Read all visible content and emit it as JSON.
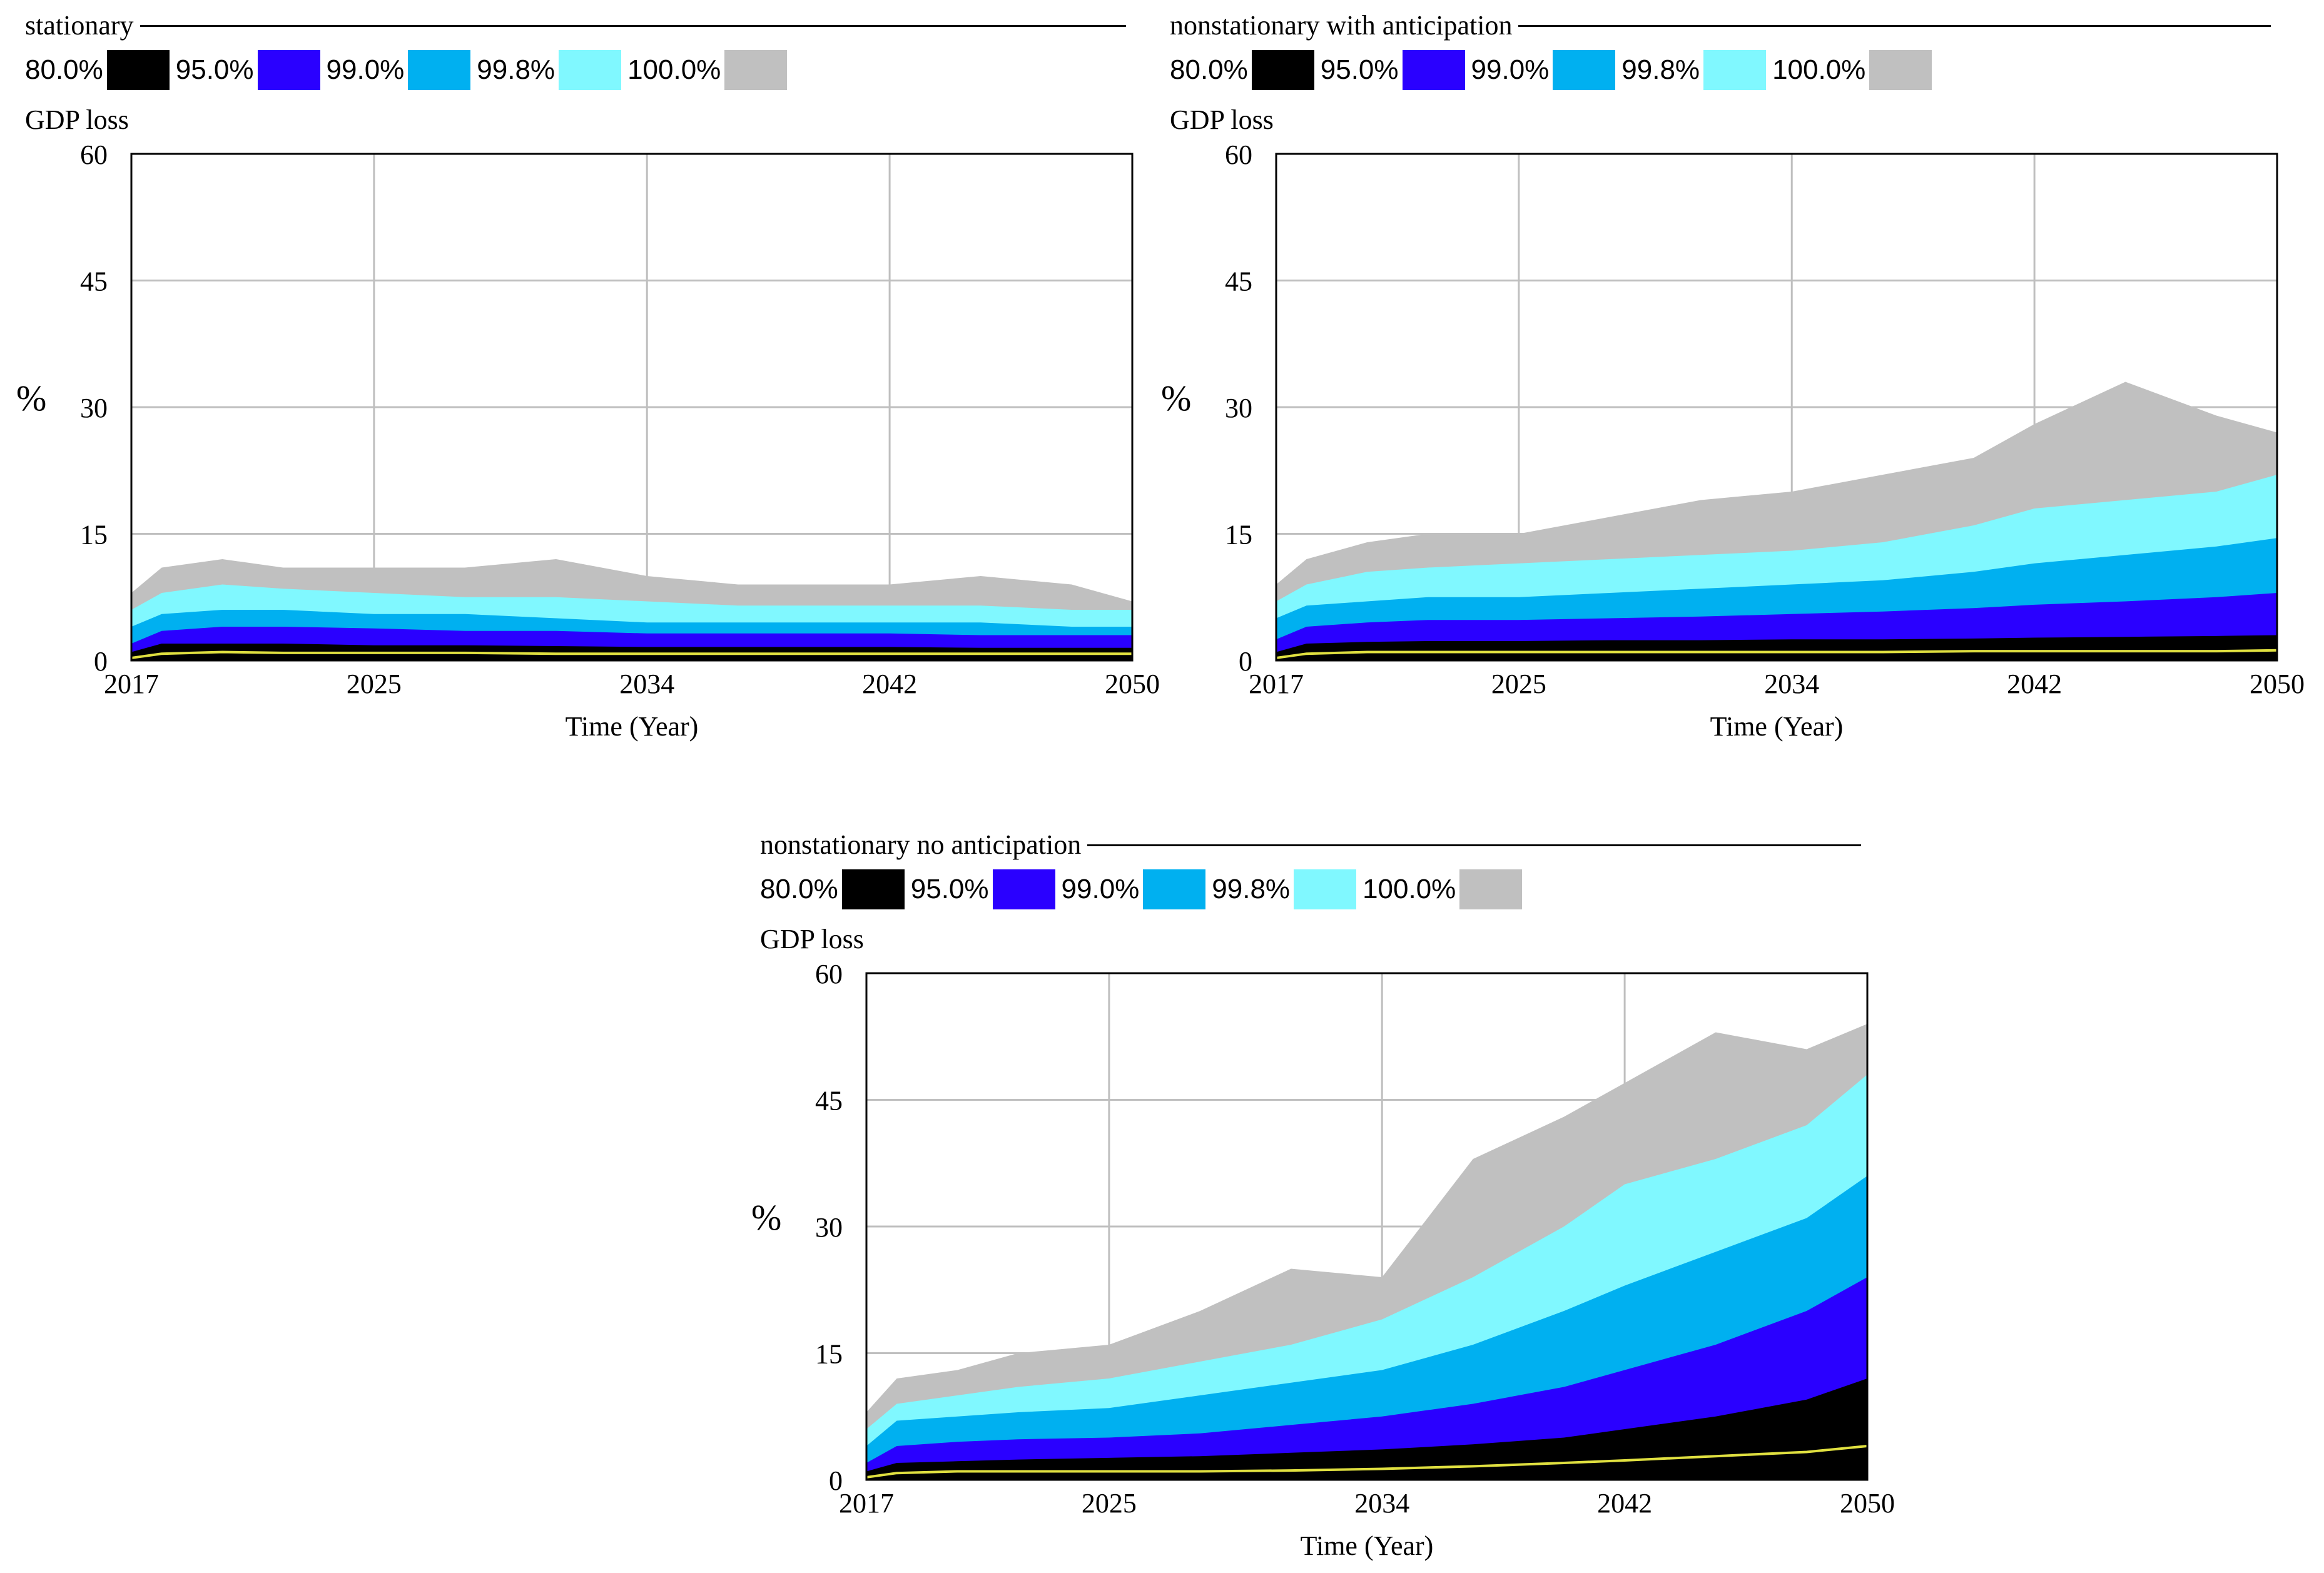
{
  "colors": {
    "p80": "#000000",
    "p95": "#2a00ff",
    "p99": "#00b0f0",
    "p99_8": "#80f8ff",
    "p100": "#c0c0c0",
    "median": "#e0e040",
    "grid": "#bfbfbf"
  },
  "legend": [
    {
      "label": "80.0%",
      "color_key": "p80"
    },
    {
      "label": "95.0%",
      "color_key": "p95"
    },
    {
      "label": "99.0%",
      "color_key": "p99"
    },
    {
      "label": "99.8%",
      "color_key": "p99_8"
    },
    {
      "label": "100.0%",
      "color_key": "p100"
    }
  ],
  "chart_data": [
    {
      "type": "area",
      "title": "stationary",
      "variable": "GDP loss",
      "ylabel": "%",
      "xlabel": "Time (Year)",
      "ylim": [
        0,
        60
      ],
      "xlim": [
        2017,
        2050
      ],
      "yticks": [
        0,
        15,
        30,
        45,
        60
      ],
      "xticks": [
        2017,
        2025,
        2034,
        2042,
        2050
      ],
      "x": [
        2017,
        2018,
        2020,
        2022,
        2025,
        2028,
        2031,
        2034,
        2037,
        2040,
        2042,
        2045,
        2048,
        2050
      ],
      "series": [
        {
          "name": "100.0%",
          "values": [
            8,
            11,
            12,
            11,
            11,
            11,
            12,
            10,
            9,
            9,
            9,
            10,
            9,
            7
          ]
        },
        {
          "name": "99.8%",
          "values": [
            6,
            8,
            9,
            8.5,
            8,
            7.5,
            7.5,
            7,
            6.5,
            6.5,
            6.5,
            6.5,
            6,
            6
          ]
        },
        {
          "name": "99.0%",
          "values": [
            4,
            5.5,
            6,
            6,
            5.5,
            5.5,
            5,
            4.5,
            4.5,
            4.5,
            4.5,
            4.5,
            4,
            4
          ]
        },
        {
          "name": "95.0%",
          "values": [
            2,
            3.5,
            4,
            4,
            3.8,
            3.5,
            3.5,
            3.2,
            3.2,
            3.2,
            3.2,
            3,
            3,
            3
          ]
        },
        {
          "name": "80.0%",
          "values": [
            1,
            2,
            2,
            2,
            1.8,
            1.8,
            1.7,
            1.6,
            1.6,
            1.6,
            1.6,
            1.5,
            1.5,
            1.5
          ]
        },
        {
          "name": "median",
          "values": [
            0.3,
            0.8,
            1,
            0.9,
            0.9,
            0.9,
            0.8,
            0.8,
            0.8,
            0.8,
            0.8,
            0.8,
            0.8,
            0.8
          ]
        }
      ]
    },
    {
      "type": "area",
      "title": "nonstationary with anticipation",
      "variable": "GDP loss",
      "ylabel": "%",
      "xlabel": "Time (Year)",
      "ylim": [
        0,
        60
      ],
      "xlim": [
        2017,
        2050
      ],
      "yticks": [
        0,
        15,
        30,
        45,
        60
      ],
      "xticks": [
        2017,
        2025,
        2034,
        2042,
        2050
      ],
      "x": [
        2017,
        2018,
        2020,
        2022,
        2025,
        2028,
        2031,
        2034,
        2037,
        2040,
        2042,
        2045,
        2048,
        2050
      ],
      "series": [
        {
          "name": "100.0%",
          "values": [
            9,
            12,
            14,
            15,
            15,
            17,
            19,
            20,
            22,
            24,
            28,
            33,
            29,
            27
          ]
        },
        {
          "name": "99.8%",
          "values": [
            7,
            9,
            10.5,
            11,
            11.5,
            12,
            12.5,
            13,
            14,
            16,
            18,
            19,
            20,
            22
          ]
        },
        {
          "name": "99.0%",
          "values": [
            5,
            6.5,
            7,
            7.5,
            7.5,
            8,
            8.5,
            9,
            9.5,
            10.5,
            11.5,
            12.5,
            13.5,
            14.5
          ]
        },
        {
          "name": "95.0%",
          "values": [
            2.5,
            4,
            4.5,
            4.8,
            4.8,
            5,
            5.2,
            5.5,
            5.8,
            6.2,
            6.6,
            7,
            7.5,
            8
          ]
        },
        {
          "name": "80.0%",
          "values": [
            1,
            2,
            2.2,
            2.3,
            2.3,
            2.4,
            2.4,
            2.5,
            2.5,
            2.6,
            2.7,
            2.8,
            2.9,
            3
          ]
        },
        {
          "name": "median",
          "values": [
            0.3,
            0.8,
            1,
            1,
            1,
            1,
            1,
            1,
            1,
            1.1,
            1.1,
            1.1,
            1.1,
            1.2
          ]
        }
      ]
    },
    {
      "type": "area",
      "title": "nonstationary no anticipation",
      "variable": "GDP loss",
      "ylabel": "%",
      "xlabel": "Time (Year)",
      "ylim": [
        0,
        60
      ],
      "xlim": [
        2017,
        2050
      ],
      "yticks": [
        0,
        15,
        30,
        45,
        60
      ],
      "xticks": [
        2017,
        2025,
        2034,
        2042,
        2050
      ],
      "x": [
        2017,
        2018,
        2020,
        2022,
        2025,
        2028,
        2031,
        2034,
        2037,
        2040,
        2042,
        2045,
        2048,
        2050
      ],
      "series": [
        {
          "name": "100.0%",
          "values": [
            8,
            12,
            13,
            15,
            16,
            20,
            25,
            24,
            38,
            43,
            47,
            53,
            51,
            54
          ]
        },
        {
          "name": "99.8%",
          "values": [
            6,
            9,
            10,
            11,
            12,
            14,
            16,
            19,
            24,
            30,
            35,
            38,
            42,
            48
          ]
        },
        {
          "name": "99.0%",
          "values": [
            4,
            7,
            7.5,
            8,
            8.5,
            10,
            11.5,
            13,
            16,
            20,
            23,
            27,
            31,
            36
          ]
        },
        {
          "name": "95.0%",
          "values": [
            2,
            4,
            4.5,
            4.8,
            5,
            5.5,
            6.5,
            7.5,
            9,
            11,
            13,
            16,
            20,
            24
          ]
        },
        {
          "name": "80.0%",
          "values": [
            1,
            2,
            2.2,
            2.4,
            2.6,
            2.8,
            3.2,
            3.6,
            4.2,
            5,
            6,
            7.5,
            9.5,
            12
          ]
        },
        {
          "name": "median",
          "values": [
            0.3,
            0.8,
            1,
            1,
            1,
            1,
            1.1,
            1.3,
            1.6,
            2,
            2.3,
            2.8,
            3.3,
            4
          ]
        }
      ]
    }
  ]
}
